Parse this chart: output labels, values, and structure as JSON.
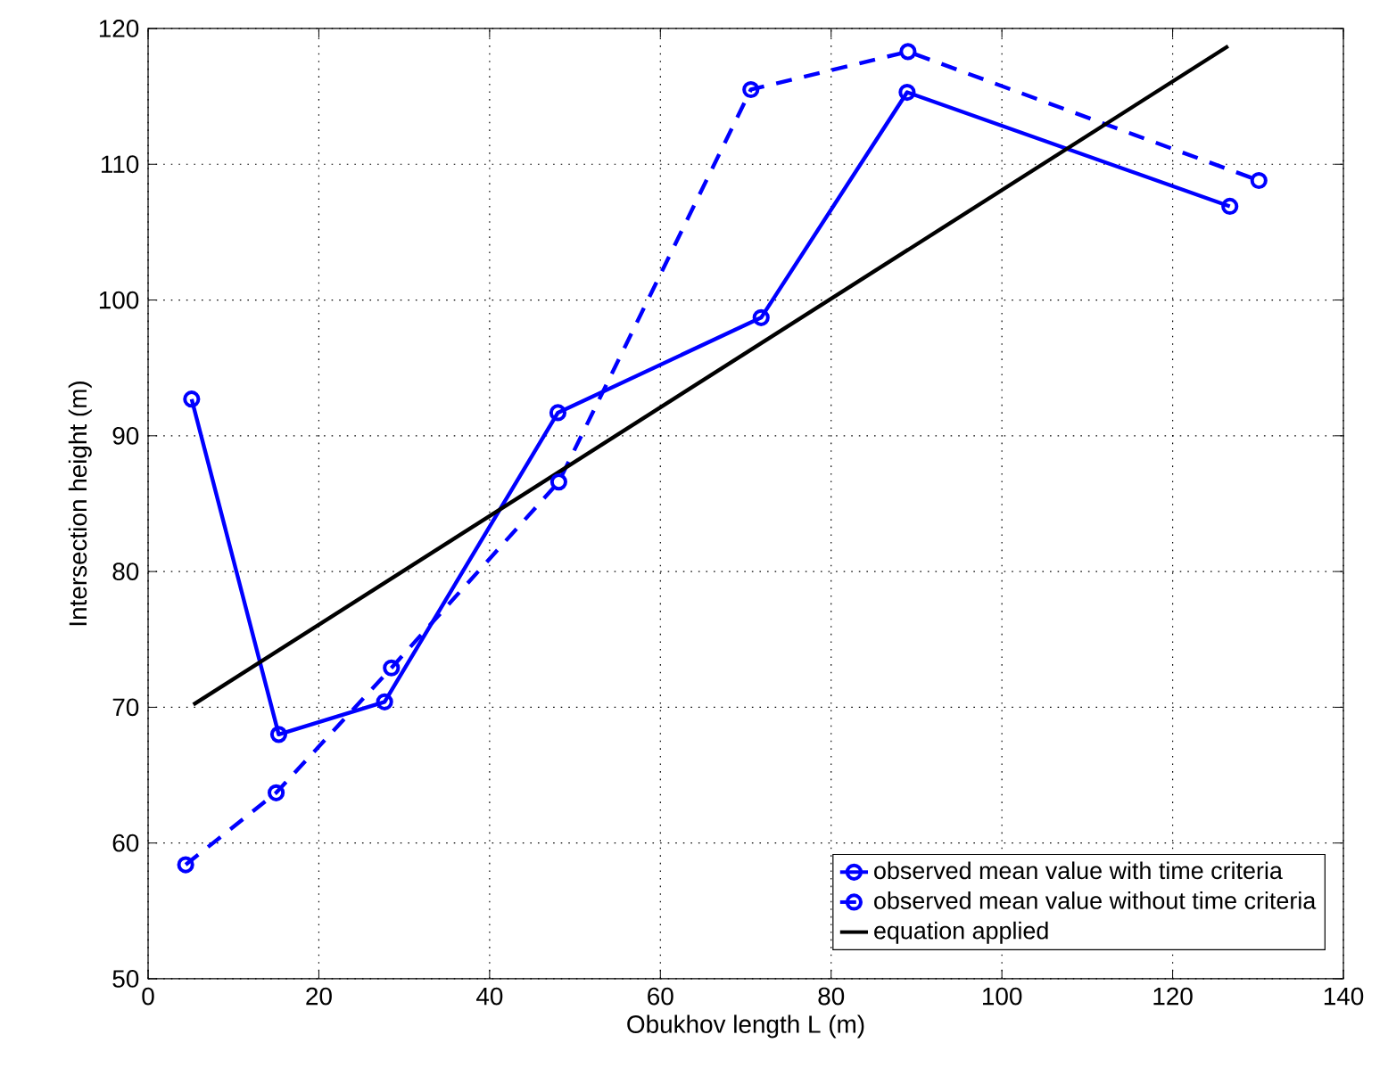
{
  "chart_data": {
    "type": "line",
    "xlabel": "Obukhov length L (m)",
    "ylabel": "Intersection height (m)",
    "series": [
      {
        "name": "observed mean value with time criteria",
        "color": "#0000ff",
        "marker": "circle",
        "line_style": "solid",
        "x": [
          5.1,
          15.3,
          27.7,
          48.0,
          71.8,
          88.9,
          126.7
        ],
        "values": [
          92.7,
          68.0,
          70.4,
          91.7,
          98.7,
          115.3,
          106.9
        ]
      },
      {
        "name": "observed mean value without time criteria",
        "color": "#0000ff",
        "marker": "circle",
        "line_style": "dashed",
        "x": [
          4.4,
          15.0,
          28.5,
          48.1,
          70.6,
          89.0,
          130.1
        ],
        "values": [
          58.4,
          63.7,
          72.9,
          86.6,
          115.5,
          118.3,
          108.8
        ]
      },
      {
        "name": "equation applied",
        "color": "#000000",
        "marker": "none",
        "line_style": "solid",
        "x": [
          5.3,
          126.5
        ],
        "values": [
          70.2,
          118.7
        ]
      }
    ],
    "xlim": [
      0,
      140
    ],
    "ylim": [
      50,
      120
    ],
    "xticks": [
      0,
      20,
      40,
      60,
      80,
      100,
      120,
      140
    ],
    "yticks": [
      50,
      60,
      70,
      80,
      90,
      100,
      110,
      120
    ],
    "grid": true,
    "legend": "bottom right"
  }
}
